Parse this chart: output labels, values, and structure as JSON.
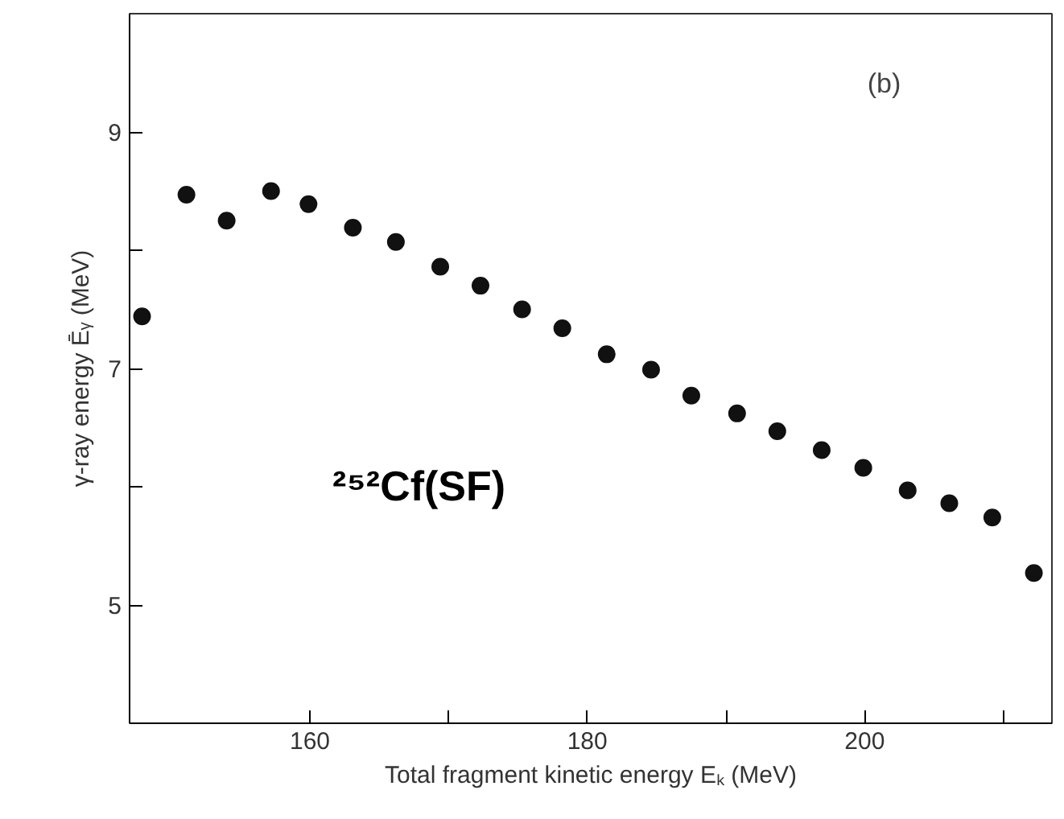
{
  "chart_data": {
    "type": "scatter",
    "xlabel": "Total fragment kinetic energy Eₖ (MeV)",
    "ylabel": "γ-ray energy Ēᵧ (MeV)",
    "annotations": [
      "(b)",
      "²⁵²Cf(SF)"
    ],
    "x": [
      147.9,
      151.1,
      154.0,
      157.2,
      159.9,
      163.1,
      166.2,
      169.4,
      172.3,
      175.3,
      178.2,
      181.4,
      184.6,
      187.5,
      190.8,
      193.7,
      196.9,
      199.9,
      203.1,
      206.1,
      209.2,
      212.2
    ],
    "series": [
      {
        "color": "#111111",
        "values": [
          7.44,
          8.47,
          8.25,
          8.5,
          8.39,
          8.19,
          8.07,
          7.86,
          7.7,
          7.5,
          7.34,
          7.12,
          6.99,
          6.77,
          6.62,
          6.47,
          6.31,
          6.16,
          5.97,
          5.86,
          5.74,
          5.27
        ]
      }
    ],
    "xlim": [
      147,
      213.5
    ],
    "ylim": [
      4,
      10
    ],
    "xticks": [
      160,
      {
        "value": 170,
        "label": null
      },
      180,
      {
        "value": 190,
        "label": null
      },
      200,
      {
        "value": 210,
        "label": null
      }
    ],
    "yticks": [
      5,
      {
        "value": 6,
        "label": null
      },
      7,
      {
        "value": 8,
        "label": null
      },
      9
    ],
    "marker": "circle",
    "grid": false
  }
}
